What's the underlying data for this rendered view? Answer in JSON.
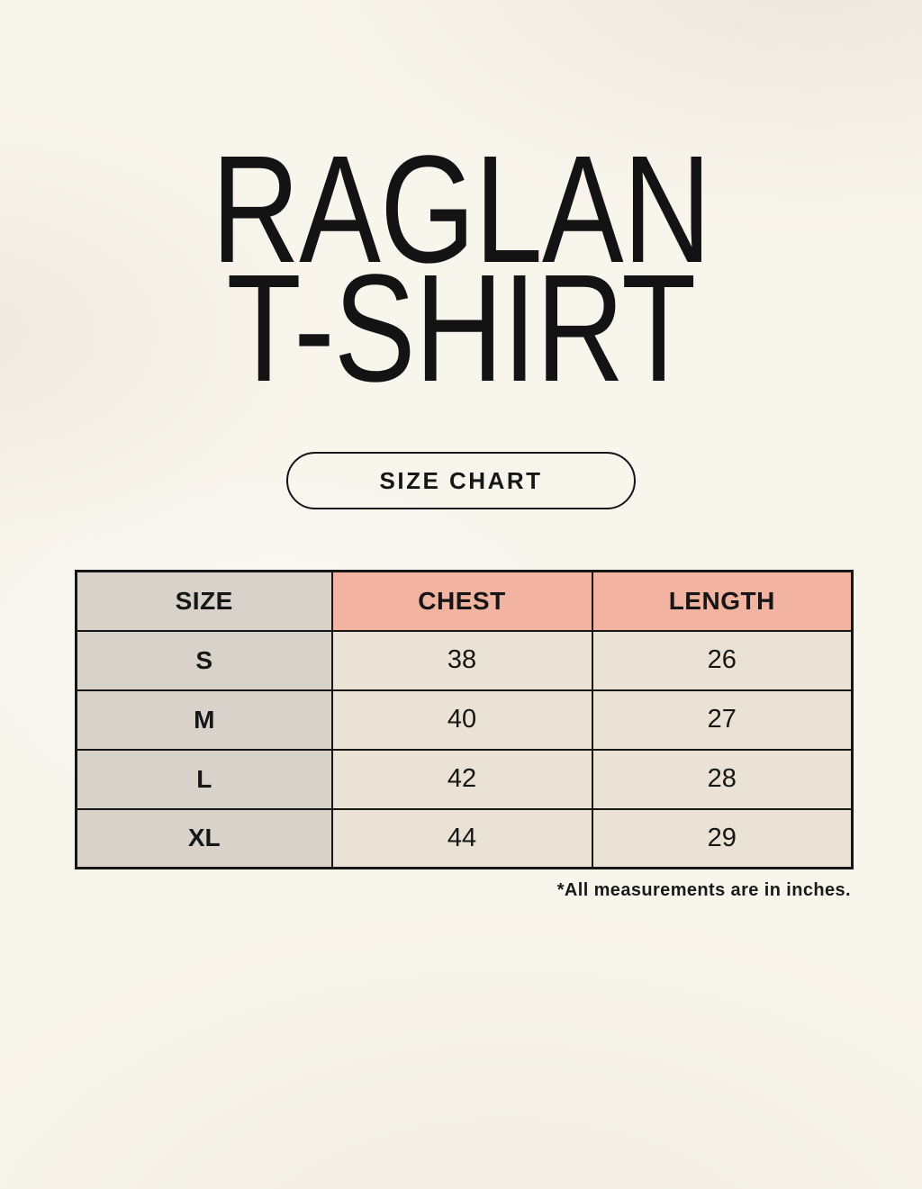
{
  "page": {
    "title_line1": "RAGLAN",
    "title_line2": "T-SHIRT",
    "badge_label": "SIZE CHART",
    "footnote": "*All measurements are in inches."
  },
  "colors": {
    "background": "#f8f5ed",
    "header_accent_salmon": "#f2b3a0",
    "size_column_gray": "#d9d2cb",
    "data_cell_cream": "#eae2d4",
    "border_black": "#161616",
    "text_black": "#161616"
  },
  "table": {
    "headers": [
      "SIZE",
      "CHEST",
      "LENGTH"
    ],
    "rows": [
      [
        "S",
        "38",
        "26"
      ],
      [
        "M",
        "40",
        "27"
      ],
      [
        "L",
        "42",
        "28"
      ],
      [
        "XL",
        "44",
        "29"
      ]
    ]
  },
  "chart_data": {
    "type": "table",
    "title": "RAGLAN T-SHIRT SIZE CHART",
    "columns": [
      "SIZE",
      "CHEST",
      "LENGTH"
    ],
    "rows": [
      {
        "size": "S",
        "chest": 38,
        "length": 26
      },
      {
        "size": "M",
        "chest": 40,
        "length": 27
      },
      {
        "size": "L",
        "chest": 42,
        "length": 28
      },
      {
        "size": "XL",
        "chest": 44,
        "length": 29
      }
    ],
    "units": "inches",
    "note": "*All measurements are in inches."
  }
}
